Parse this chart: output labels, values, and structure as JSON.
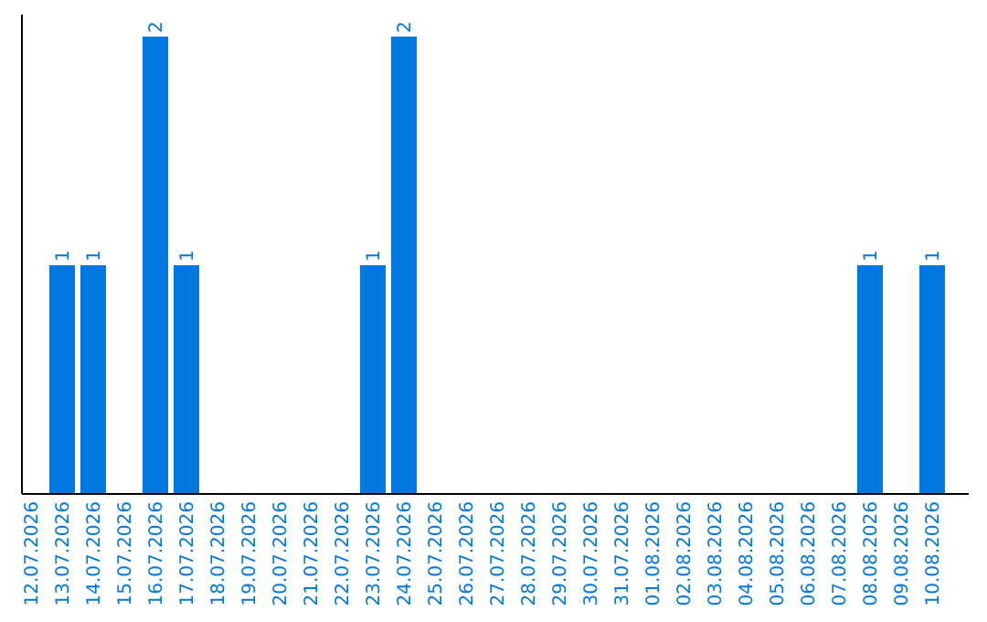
{
  "chart_data": {
    "type": "bar",
    "categories": [
      "12.07.2026",
      "13.07.2026",
      "14.07.2026",
      "15.07.2026",
      "16.07.2026",
      "17.07.2026",
      "18.07.2026",
      "19.07.2026",
      "20.07.2026",
      "21.07.2026",
      "22.07.2026",
      "23.07.2026",
      "24.07.2026",
      "25.07.2026",
      "26.07.2026",
      "27.07.2026",
      "28.07.2026",
      "29.07.2026",
      "30.07.2026",
      "31.07.2026",
      "01.08.2026",
      "02.08.2026",
      "03.08.2026",
      "04.08.2026",
      "05.08.2026",
      "06.08.2026",
      "07.08.2026",
      "08.08.2026",
      "09.08.2026",
      "10.08.2026"
    ],
    "values": [
      0,
      1,
      1,
      0,
      2,
      1,
      0,
      0,
      0,
      0,
      0,
      1,
      2,
      0,
      0,
      0,
      0,
      0,
      0,
      0,
      0,
      0,
      0,
      0,
      0,
      0,
      0,
      1,
      0,
      1
    ],
    "value_labels": [
      null,
      "1",
      "1",
      null,
      "2",
      "1",
      null,
      null,
      null,
      null,
      null,
      "1",
      "2",
      null,
      null,
      null,
      null,
      null,
      null,
      null,
      null,
      null,
      null,
      null,
      null,
      null,
      null,
      "1",
      null,
      "1"
    ],
    "color": "#0078e0",
    "tick_labels": "x"
  }
}
